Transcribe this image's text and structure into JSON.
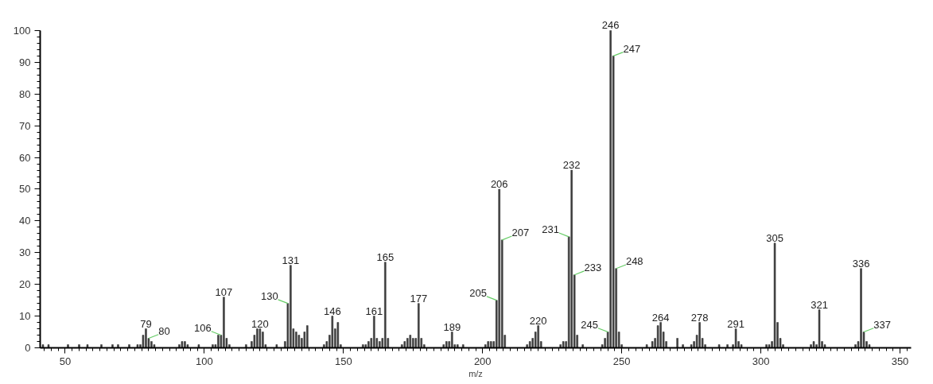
{
  "chart_data": {
    "type": "bar",
    "xlabel": "m/z",
    "color": "#3a3a3a",
    "grid": false,
    "xlim": [
      41,
      354
    ],
    "ylim": [
      0,
      100
    ],
    "xticks": [
      50,
      100,
      150,
      200,
      250,
      300,
      350
    ],
    "yticks": [
      0,
      10,
      20,
      30,
      40,
      50,
      60,
      70,
      80,
      90,
      100
    ],
    "x": [
      42,
      44,
      51,
      55,
      58,
      63,
      67,
      69,
      73,
      76,
      77,
      78,
      79,
      80,
      81,
      82,
      91,
      92,
      93,
      94,
      98,
      103,
      104,
      105,
      106,
      107,
      108,
      109,
      115,
      117,
      118,
      119,
      120,
      121,
      122,
      126,
      129,
      130,
      131,
      132,
      133,
      134,
      135,
      136,
      137,
      143,
      144,
      145,
      146,
      147,
      148,
      149,
      157,
      158,
      159,
      160,
      161,
      162,
      163,
      164,
      165,
      166,
      171,
      172,
      173,
      174,
      175,
      176,
      177,
      178,
      179,
      186,
      187,
      188,
      189,
      190,
      191,
      193,
      201,
      202,
      203,
      204,
      205,
      206,
      207,
      208,
      216,
      217,
      218,
      219,
      220,
      221,
      228,
      229,
      230,
      231,
      232,
      233,
      234,
      236,
      243,
      244,
      245,
      246,
      247,
      248,
      249,
      250,
      259,
      261,
      262,
      263,
      264,
      265,
      266,
      270,
      272,
      275,
      276,
      277,
      278,
      279,
      280,
      285,
      288,
      290,
      291,
      292,
      293,
      302,
      303,
      304,
      305,
      306,
      307,
      308,
      318,
      319,
      320,
      321,
      322,
      323,
      334,
      335,
      336,
      337,
      338,
      339
    ],
    "values": [
      1,
      1,
      1,
      1,
      1,
      1,
      1,
      1,
      1,
      1,
      1,
      4,
      6,
      3,
      2,
      1,
      1,
      2,
      2,
      1,
      1,
      1,
      1,
      4,
      4,
      16,
      3,
      1,
      1,
      2,
      4,
      6,
      6,
      5,
      1,
      1,
      2,
      14,
      26,
      6,
      5,
      4,
      3,
      5,
      7,
      1,
      2,
      4,
      10,
      6,
      8,
      1,
      1,
      1,
      2,
      3,
      10,
      3,
      2,
      3,
      27,
      3,
      1,
      2,
      3,
      4,
      3,
      3,
      14,
      3,
      1,
      1,
      2,
      2,
      5,
      1,
      1,
      1,
      1,
      2,
      2,
      2,
      15,
      50,
      34,
      4,
      1,
      2,
      3,
      5,
      7,
      2,
      1,
      2,
      2,
      35,
      56,
      23,
      4,
      1,
      1,
      3,
      5,
      100,
      92,
      25,
      5,
      1,
      1,
      2,
      3,
      7,
      8,
      5,
      2,
      3,
      1,
      1,
      2,
      4,
      8,
      3,
      1,
      1,
      1,
      1,
      6,
      2,
      1,
      1,
      1,
      2,
      33,
      8,
      3,
      1,
      1,
      2,
      1,
      12,
      2,
      1,
      1,
      2,
      25,
      5,
      2,
      1
    ],
    "annotations": [
      {
        "text": "79",
        "x": 79,
        "y": 6
      },
      {
        "text": "80",
        "x": 80,
        "y": 3
      },
      {
        "text": "106",
        "x": 106,
        "y": 4
      },
      {
        "text": "107",
        "x": 107,
        "y": 16
      },
      {
        "text": "120",
        "x": 120,
        "y": 6
      },
      {
        "text": "130",
        "x": 130,
        "y": 14
      },
      {
        "text": "131",
        "x": 131,
        "y": 26
      },
      {
        "text": "146",
        "x": 146,
        "y": 10
      },
      {
        "text": "161",
        "x": 161,
        "y": 10
      },
      {
        "text": "165",
        "x": 165,
        "y": 27
      },
      {
        "text": "177",
        "x": 177,
        "y": 14
      },
      {
        "text": "189",
        "x": 189,
        "y": 5
      },
      {
        "text": "205",
        "x": 205,
        "y": 15
      },
      {
        "text": "206",
        "x": 206,
        "y": 50
      },
      {
        "text": "207",
        "x": 207,
        "y": 34
      },
      {
        "text": "220",
        "x": 220,
        "y": 7
      },
      {
        "text": "231",
        "x": 231,
        "y": 35
      },
      {
        "text": "232",
        "x": 232,
        "y": 56
      },
      {
        "text": "233",
        "x": 233,
        "y": 23
      },
      {
        "text": "245",
        "x": 245,
        "y": 5
      },
      {
        "text": "246",
        "x": 246,
        "y": 100
      },
      {
        "text": "247",
        "x": 247,
        "y": 92
      },
      {
        "text": "248",
        "x": 248,
        "y": 25
      },
      {
        "text": "264",
        "x": 264,
        "y": 8
      },
      {
        "text": "278",
        "x": 278,
        "y": 8
      },
      {
        "text": "291",
        "x": 291,
        "y": 6
      },
      {
        "text": "305",
        "x": 305,
        "y": 33
      },
      {
        "text": "321",
        "x": 321,
        "y": 12
      },
      {
        "text": "336",
        "x": 336,
        "y": 25
      },
      {
        "text": "337",
        "x": 337,
        "y": 5
      }
    ]
  }
}
